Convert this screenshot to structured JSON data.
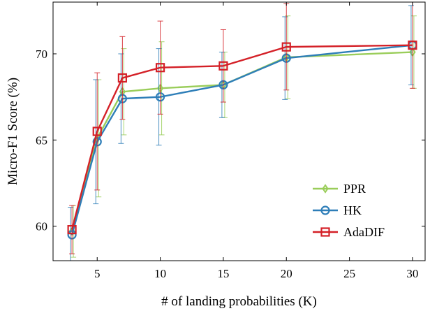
{
  "chart_data": {
    "type": "line",
    "xlabel": "# of landing probabilities (K)",
    "ylabel": "Micro-F1 Score (%)",
    "xlim": [
      1.5,
      31
    ],
    "ylim": [
      58,
      73
    ],
    "xticks": [
      5,
      10,
      15,
      20,
      25,
      30
    ],
    "yticks": [
      60,
      65,
      70
    ],
    "grid": false,
    "legend_position": "bottom-right",
    "x": [
      3,
      5,
      7,
      10,
      15,
      20,
      30
    ],
    "series": [
      {
        "name": "PPR",
        "color": "#9ACD5A",
        "marker": "diamond",
        "values": [
          59.7,
          65.1,
          67.8,
          68.0,
          68.2,
          69.8,
          70.1
        ],
        "err": [
          1.5,
          3.4,
          2.5,
          2.7,
          1.9,
          2.4,
          2.1
        ]
      },
      {
        "name": "HK",
        "color": "#2E7EB8",
        "marker": "circle",
        "values": [
          59.5,
          64.9,
          67.4,
          67.5,
          68.2,
          69.75,
          70.5
        ],
        "err": [
          1.6,
          3.6,
          2.6,
          2.8,
          1.9,
          2.4,
          2.3
        ]
      },
      {
        "name": "AdaDIF",
        "color": "#D42027",
        "marker": "square",
        "values": [
          59.8,
          65.5,
          68.6,
          69.2,
          69.3,
          70.4,
          70.5
        ],
        "err": [
          1.4,
          3.4,
          2.4,
          2.7,
          2.1,
          2.5,
          2.5
        ]
      }
    ]
  }
}
